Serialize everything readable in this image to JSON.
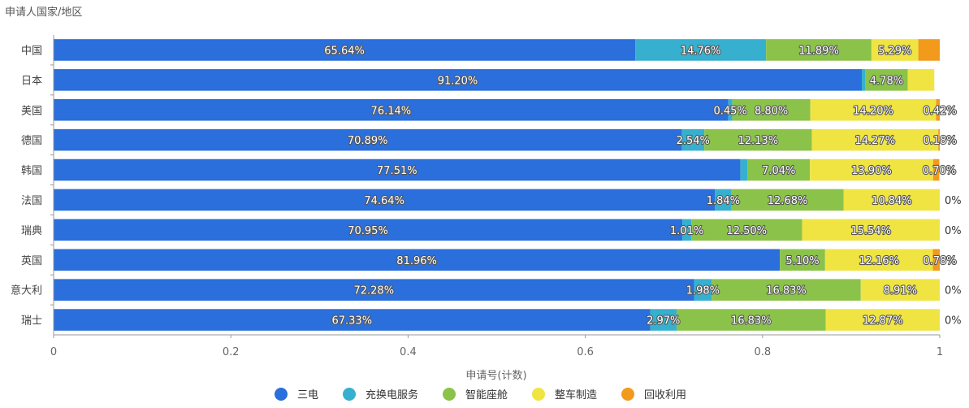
{
  "chart_data": {
    "type": "bar",
    "orientation": "horizontal",
    "stacked": true,
    "title": "申请人国家/地区",
    "xlabel": "申请号(计数)",
    "ylabel": "",
    "xlim": [
      0,
      1
    ],
    "xticks": [
      "0",
      "0.2",
      "0.4",
      "0.6",
      "0.8",
      "1"
    ],
    "legend_position": "bottom",
    "categories": [
      "中国",
      "日本",
      "美国",
      "德国",
      "韩国",
      "法国",
      "瑞典",
      "英国",
      "意大利",
      "瑞士"
    ],
    "series": [
      {
        "name": "三电",
        "color": "#2a6fdb",
        "values": [
          0.6564,
          0.912,
          0.7614,
          0.7089,
          0.7751,
          0.7464,
          0.7095,
          0.8196,
          0.7228,
          0.6733
        ],
        "labels": [
          "65.64%",
          "91.20%",
          "76.14%",
          "70.89%",
          "77.51%",
          "74.64%",
          "70.95%",
          "81.96%",
          "72.28%",
          "67.33%"
        ]
      },
      {
        "name": "充换电服务",
        "color": "#36b0ce",
        "values": [
          0.1476,
          0.004,
          0.0045,
          0.0254,
          0.008,
          0.0184,
          0.0101,
          0,
          0.0198,
          0.0297
        ],
        "labels": [
          "14.76%",
          "",
          "0.45%",
          "2.54%",
          "",
          "1.84%",
          "1.01%",
          "",
          "1.98%",
          "2.97%"
        ]
      },
      {
        "name": "智能座舱",
        "color": "#8bc34a",
        "values": [
          0.1189,
          0.0478,
          0.088,
          0.1213,
          0.0704,
          0.1268,
          0.125,
          0.051,
          0.1683,
          0.1683
        ],
        "labels": [
          "11.89%",
          "4.78%",
          "8.80%",
          "12.13%",
          "7.04%",
          "12.68%",
          "12.50%",
          "5.10%",
          "16.83%",
          "16.83%"
        ]
      },
      {
        "name": "整车制造",
        "color": "#f0e443",
        "values": [
          0.0529,
          0.03,
          0.142,
          0.1427,
          0.139,
          0.1084,
          0.1554,
          0.1216,
          0.0891,
          0.1287
        ],
        "labels": [
          "5.29%",
          "",
          "14.20%",
          "14.27%",
          "13.90%",
          "10.84%",
          "15.54%",
          "12.16%",
          "8.91%",
          "12.87%"
        ]
      },
      {
        "name": "回收利用",
        "color": "#f29a1c",
        "values": [
          0.0242,
          0,
          0.0042,
          0.0018,
          0.007,
          0,
          0,
          0.0078,
          0,
          0
        ],
        "labels": [
          "",
          "",
          "0.42%",
          "0.18%",
          "0.70%",
          "0%",
          "0%",
          "0.78%",
          "0%",
          "0%"
        ]
      }
    ]
  }
}
